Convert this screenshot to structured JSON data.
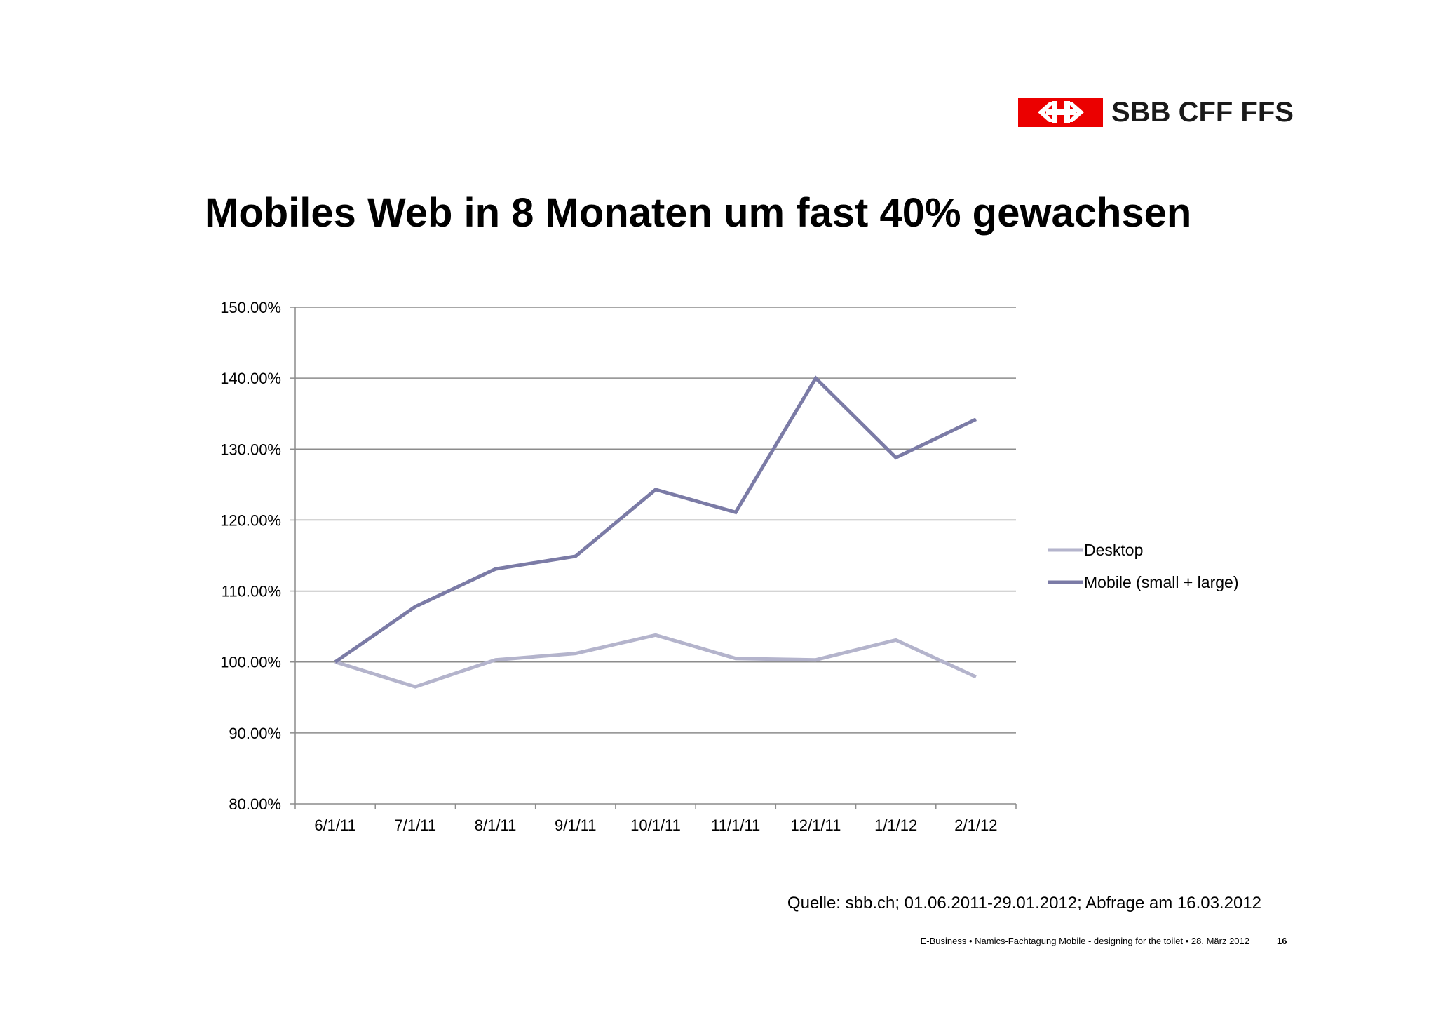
{
  "logo": {
    "text": "SBB CFF FFS",
    "brand_color": "#eb0000",
    "icon": "swiss-railway-arrows-icon"
  },
  "title": "Mobiles Web in 8 Monaten um fast 40% gewachsen",
  "chart_data": {
    "type": "line",
    "categories": [
      "6/1/11",
      "7/1/11",
      "8/1/11",
      "9/1/11",
      "10/1/11",
      "11/1/11",
      "12/1/11",
      "1/1/12",
      "2/1/12"
    ],
    "series": [
      {
        "name": "Desktop",
        "color": "#b4b4cc",
        "values": [
          100.0,
          96.5,
          100.3,
          101.2,
          103.8,
          100.5,
          100.3,
          103.1,
          97.9
        ]
      },
      {
        "name": "Mobile (small + large)",
        "color": "#7b7ba6",
        "values": [
          100.0,
          107.8,
          113.1,
          114.9,
          124.3,
          121.1,
          140.0,
          128.8,
          134.2
        ]
      }
    ],
    "ylim": [
      80,
      150
    ],
    "yticks": [
      80,
      90,
      100,
      110,
      120,
      130,
      140,
      150
    ],
    "ytick_labels": [
      "80.00%",
      "90.00%",
      "100.00%",
      "110.00%",
      "120.00%",
      "130.00%",
      "140.00%",
      "150.00%"
    ],
    "grid": "horizontal",
    "legend": "right",
    "xlabel": "",
    "ylabel": ""
  },
  "source": "Quelle: sbb.ch; 01.06.2011-29.01.2012; Abfrage am 16.03.2012",
  "footer": "E-Business • Namics-Fachtagung Mobile - designing for the toilet • 28. März 2012",
  "page_number": "16"
}
